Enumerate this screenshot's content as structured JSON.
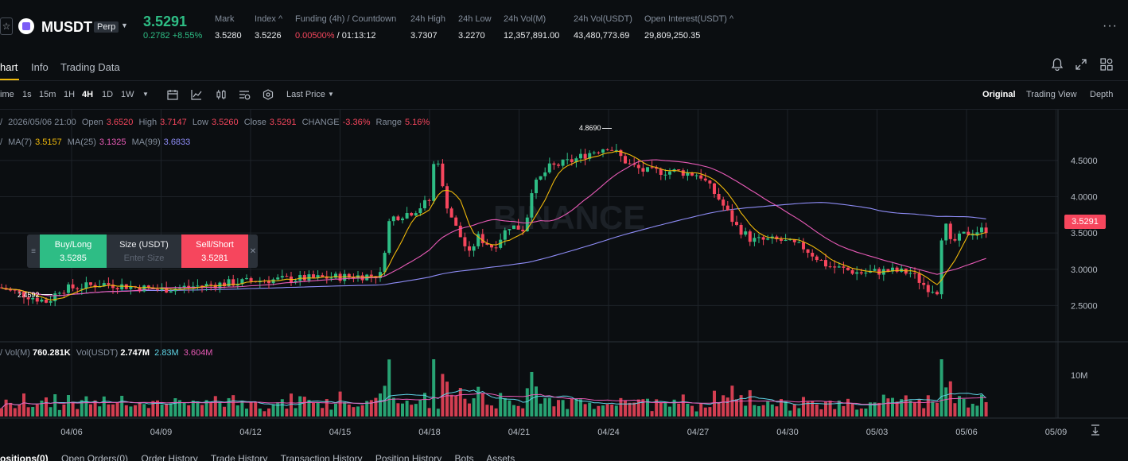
{
  "header": {
    "symbol": "MUSDT",
    "badge": "Perp",
    "price": "3.5291",
    "change": "0.2782 +8.55%",
    "stats": [
      {
        "label": "Mark",
        "value": "3.5280"
      },
      {
        "label": "Index ^",
        "value": "3.5226"
      },
      {
        "label": "Funding (4h) / Countdown",
        "value_rate": "0.00500%",
        "value_rest": " / 01:13:12"
      },
      {
        "label": "24h High",
        "value": "3.7307"
      },
      {
        "label": "24h Low",
        "value": "3.2270"
      },
      {
        "label": "24h Vol(M)",
        "value": "12,357,891.00"
      },
      {
        "label": "24h Vol(USDT)",
        "value": "43,480,773.69"
      },
      {
        "label": "Open Interest(USDT) ^",
        "value": "29,809,250.35"
      }
    ]
  },
  "tabs": [
    "hart",
    "Info",
    "Trading Data"
  ],
  "toolbar": {
    "intervals": [
      "ime",
      "1s",
      "15m",
      "1H",
      "4H",
      "1D",
      "1W"
    ],
    "active_interval": "4H",
    "price_type": "Last Price",
    "views": [
      "Original",
      "Trading View",
      "Depth"
    ]
  },
  "ohlc": {
    "date": "2026/05/06 21:00",
    "open_label": "Open",
    "open": "3.6520",
    "high_label": "High",
    "high": "3.7147",
    "low_label": "Low",
    "low": "3.5260",
    "close_label": "Close",
    "close": "3.5291",
    "change_label": "CHANGE",
    "change": "-3.36%",
    "range_label": "Range",
    "range": "5.16%"
  },
  "ma": {
    "ma7_label": "MA(7)",
    "ma7": "3.5157",
    "ma25_label": "MA(25)",
    "ma25": "3.1325",
    "ma99_label": "MA(99)",
    "ma99": "3.6833"
  },
  "order_panel": {
    "buy_label": "Buy/Long",
    "buy_price": "3.5285",
    "size_label": "Size (USDT)",
    "size_placeholder": "Enter Size",
    "sell_label": "Sell/Short",
    "sell_price": "3.5281"
  },
  "volume_legend": {
    "vol_m_label": "Vol(M)",
    "vol_m": "760.281K",
    "vol_usdt_label": "Vol(USDT)",
    "vol_usdt": "2.747M",
    "ma1": "2.83M",
    "ma2": "3.604M"
  },
  "price_tag": "3.5291",
  "bottom_tabs": [
    "ositions(0)",
    "Open Orders(0)",
    "Order History",
    "Trade History",
    "Transaction History",
    "Position History",
    "Bots",
    "Assets"
  ],
  "chart_data": {
    "type": "candlestick",
    "y_axis_ticks": [
      "4.5000",
      "4.0000",
      "3.5000",
      "3.0000",
      "2.5000"
    ],
    "y_range": [
      2.0,
      5.2
    ],
    "x_axis_ticks": [
      "04/06",
      "04/09",
      "04/12",
      "04/15",
      "04/18",
      "04/21",
      "04/24",
      "04/27",
      "04/30",
      "05/03",
      "05/06",
      "05/09"
    ],
    "annotations": {
      "high_marker": "4.8690",
      "low_marker": "2.4592"
    },
    "volume_axis_tick": "10M",
    "colors": {
      "up": "#2ebd85",
      "down": "#f6465d",
      "ma7": "#f0b90b",
      "ma25": "#e75ab6",
      "ma99": "#8e8cf6"
    }
  }
}
